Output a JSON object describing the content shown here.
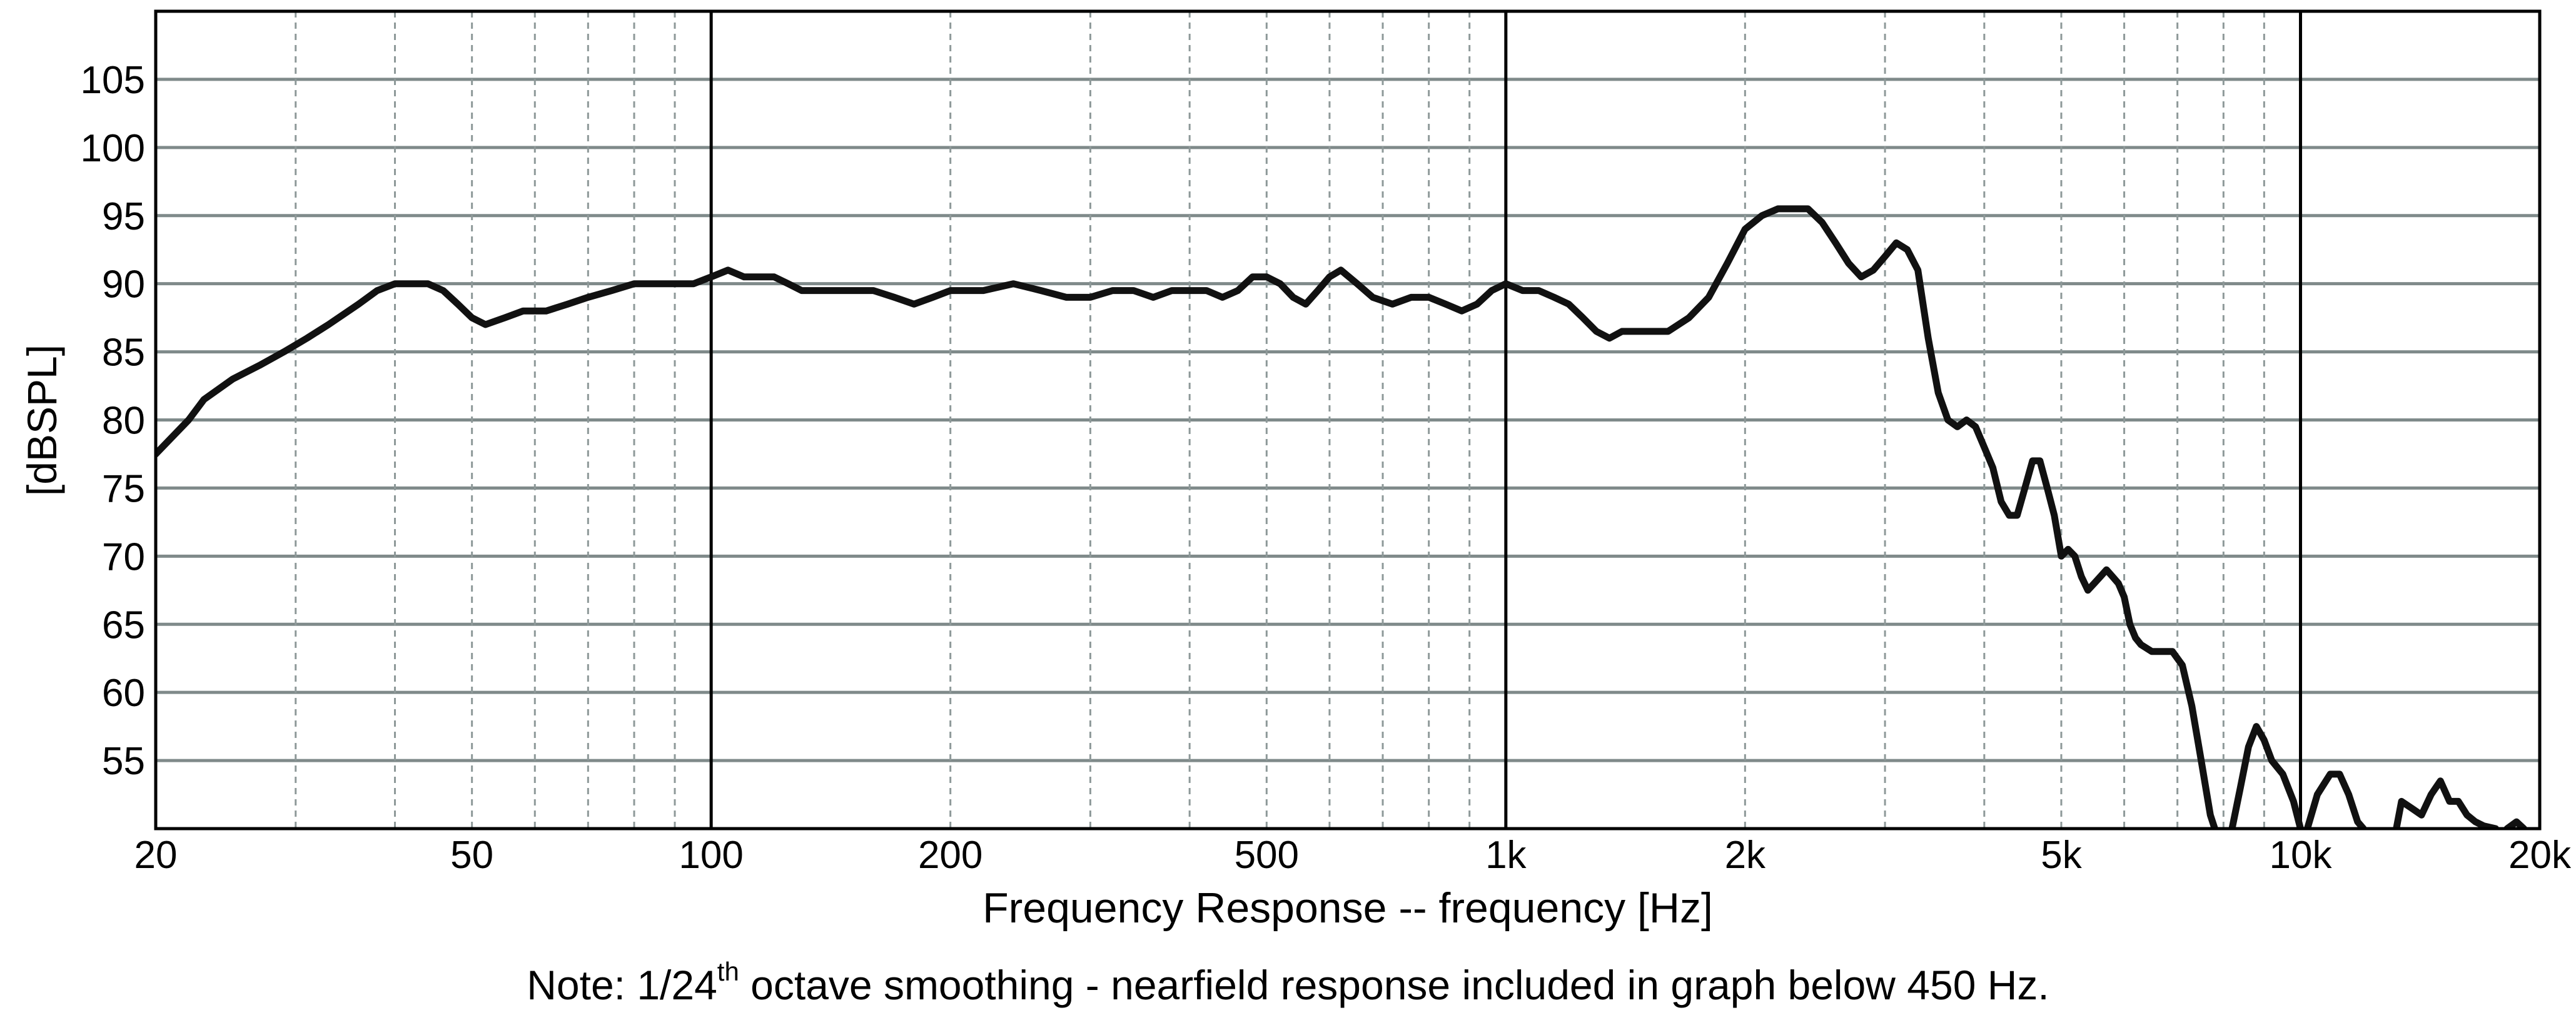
{
  "chart_data": {
    "type": "line",
    "title": "",
    "xlabel": "Frequency Response -- frequency [Hz]",
    "ylabel": "[dBSPL]",
    "xscale": "log",
    "xlim": [
      20,
      20000
    ],
    "ylim": [
      50,
      110
    ],
    "grid": true,
    "legend": "none",
    "x_tick_labels": [
      {
        "value": 20,
        "label": "20"
      },
      {
        "value": 50,
        "label": "50"
      },
      {
        "value": 100,
        "label": "100"
      },
      {
        "value": 200,
        "label": "200"
      },
      {
        "value": 500,
        "label": "500"
      },
      {
        "value": 1000,
        "label": "1k"
      },
      {
        "value": 2000,
        "label": "2k"
      },
      {
        "value": 5000,
        "label": "5k"
      },
      {
        "value": 10000,
        "label": "10k"
      },
      {
        "value": 20000,
        "label": "20k"
      }
    ],
    "y_ticks": [
      55,
      60,
      65,
      70,
      75,
      80,
      85,
      90,
      95,
      100,
      105
    ],
    "note": {
      "prefix": "Note: 1/24",
      "superscript": "th",
      "suffix": " octave smoothing - nearfield response included in graph below 450 Hz."
    },
    "line_color": "#111111",
    "grid_color": "#7f8a8a",
    "series": [
      {
        "segments": [
          [
            [
              20,
              77.5
            ],
            [
              22,
              80
            ],
            [
              23,
              81.5
            ],
            [
              25,
              83
            ],
            [
              27,
              84
            ],
            [
              29,
              85
            ],
            [
              31,
              86
            ],
            [
              33,
              87
            ],
            [
              36,
              88.5
            ],
            [
              38,
              89.5
            ],
            [
              40,
              90
            ],
            [
              42,
              90
            ],
            [
              44,
              90
            ],
            [
              46,
              89.5
            ],
            [
              48,
              88.5
            ],
            [
              50,
              87.5
            ],
            [
              52,
              87
            ],
            [
              55,
              87.5
            ],
            [
              58,
              88
            ],
            [
              62,
              88
            ],
            [
              66,
              88.5
            ],
            [
              70,
              89
            ],
            [
              75,
              89.5
            ],
            [
              80,
              90
            ],
            [
              85,
              90
            ],
            [
              90,
              90
            ],
            [
              95,
              90
            ],
            [
              100,
              90.5
            ],
            [
              105,
              91
            ],
            [
              110,
              90.5
            ],
            [
              115,
              90.5
            ],
            [
              120,
              90.5
            ],
            [
              125,
              90
            ],
            [
              130,
              89.5
            ],
            [
              140,
              89.5
            ],
            [
              150,
              89.5
            ],
            [
              160,
              89.5
            ],
            [
              170,
              89
            ],
            [
              180,
              88.5
            ],
            [
              190,
              89
            ],
            [
              200,
              89.5
            ],
            [
              210,
              89.5
            ],
            [
              220,
              89.5
            ],
            [
              240,
              90
            ],
            [
              260,
              89.5
            ],
            [
              280,
              89
            ],
            [
              300,
              89
            ],
            [
              320,
              89.5
            ],
            [
              340,
              89.5
            ],
            [
              360,
              89
            ],
            [
              380,
              89.5
            ],
            [
              400,
              89.5
            ],
            [
              420,
              89.5
            ],
            [
              440,
              89
            ],
            [
              460,
              89.5
            ],
            [
              480,
              90.5
            ],
            [
              500,
              90.5
            ],
            [
              520,
              90
            ],
            [
              540,
              89
            ],
            [
              560,
              88.5
            ],
            [
              580,
              89.5
            ],
            [
              600,
              90.5
            ],
            [
              620,
              91
            ],
            [
              650,
              90
            ],
            [
              680,
              89
            ],
            [
              720,
              88.5
            ],
            [
              760,
              89
            ],
            [
              800,
              89
            ],
            [
              840,
              88.5
            ],
            [
              880,
              88
            ],
            [
              920,
              88.5
            ],
            [
              960,
              89.5
            ],
            [
              1000,
              90
            ],
            [
              1050,
              89.5
            ],
            [
              1100,
              89.5
            ],
            [
              1150,
              89
            ],
            [
              1200,
              88.5
            ],
            [
              1250,
              87.5
            ],
            [
              1300,
              86.5
            ],
            [
              1350,
              86
            ],
            [
              1400,
              86.5
            ],
            [
              1500,
              86.5
            ],
            [
              1600,
              86.5
            ],
            [
              1700,
              87.5
            ],
            [
              1800,
              89
            ],
            [
              1900,
              91.5
            ],
            [
              2000,
              94
            ],
            [
              2100,
              95
            ],
            [
              2200,
              95.5
            ],
            [
              2300,
              95.5
            ],
            [
              2400,
              95.5
            ],
            [
              2500,
              94.5
            ],
            [
              2600,
              93
            ],
            [
              2700,
              91.5
            ],
            [
              2800,
              90.5
            ],
            [
              2900,
              91
            ],
            [
              3000,
              92
            ],
            [
              3100,
              93
            ],
            [
              3200,
              92.5
            ],
            [
              3300,
              91
            ],
            [
              3400,
              86
            ],
            [
              3500,
              82
            ],
            [
              3600,
              80
            ],
            [
              3700,
              79.5
            ],
            [
              3800,
              80
            ],
            [
              3900,
              79.5
            ],
            [
              4000,
              78
            ],
            [
              4100,
              76.5
            ],
            [
              4200,
              74
            ],
            [
              4300,
              73
            ],
            [
              4400,
              73
            ],
            [
              4500,
              75
            ],
            [
              4600,
              77
            ],
            [
              4700,
              77
            ],
            [
              4800,
              75
            ],
            [
              4900,
              73
            ],
            [
              5000,
              70
            ],
            [
              5100,
              70.5
            ],
            [
              5200,
              70
            ],
            [
              5300,
              68.5
            ],
            [
              5400,
              67.5
            ],
            [
              5500,
              68
            ],
            [
              5600,
              68.5
            ],
            [
              5700,
              69
            ],
            [
              5800,
              68.5
            ],
            [
              5900,
              68
            ],
            [
              6000,
              67
            ],
            [
              6100,
              65
            ],
            [
              6200,
              64
            ],
            [
              6300,
              63.5
            ],
            [
              6500,
              63
            ],
            [
              6700,
              63
            ],
            [
              6900,
              63
            ],
            [
              7100,
              62
            ],
            [
              7300,
              59
            ],
            [
              7500,
              55
            ],
            [
              7700,
              51
            ],
            [
              7800,
              50
            ]
          ],
          [
            [
              8200,
              50
            ],
            [
              8400,
              53
            ],
            [
              8600,
              56
            ],
            [
              8800,
              57.5
            ],
            [
              9000,
              56.5
            ],
            [
              9200,
              55
            ],
            [
              9500,
              54
            ],
            [
              9800,
              52
            ],
            [
              10000,
              50
            ]
          ],
          [
            [
              10200,
              50
            ],
            [
              10500,
              52.5
            ],
            [
              10900,
              54
            ],
            [
              11200,
              54
            ],
            [
              11500,
              52.5
            ],
            [
              11800,
              50.5
            ],
            [
              12000,
              50
            ]
          ],
          [
            [
              13200,
              50
            ],
            [
              13400,
              52
            ],
            [
              13800,
              51.5
            ],
            [
              14200,
              51
            ],
            [
              14600,
              52.5
            ],
            [
              15000,
              53.5
            ],
            [
              15400,
              52
            ],
            [
              15800,
              52
            ],
            [
              16200,
              51
            ],
            [
              16600,
              50.5
            ],
            [
              17000,
              50.2
            ],
            [
              17600,
              50
            ]
          ],
          [
            [
              18200,
              50
            ],
            [
              18700,
              50.5
            ],
            [
              19100,
              50
            ]
          ]
        ]
      }
    ]
  }
}
